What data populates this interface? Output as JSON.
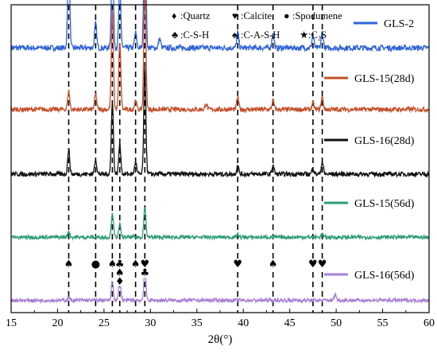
{
  "chart_data": {
    "type": "line",
    "title": "",
    "xlabel": "2θ(°)",
    "ylabel": "",
    "xlim": [
      15,
      60
    ],
    "x_ticks": [
      "15",
      "20",
      "25",
      "30",
      "35",
      "40",
      "45",
      "50",
      "55",
      "60"
    ],
    "y_ticks_shown": false,
    "grid": false,
    "legend_position": "right, beside each trace",
    "peak_key": [
      {
        "symbol": "♦",
        "label": ":Quartz"
      },
      {
        "symbol": "♥",
        "label": ":Calcite"
      },
      {
        "symbol": "●",
        "label": ":Spodumene"
      },
      {
        "symbol": "♣",
        "label": ":C-S-H"
      },
      {
        "symbol": "♠",
        "label": ":C-A-S-H"
      },
      {
        "symbol": "★",
        "label": ":C₂S"
      }
    ],
    "reference_lines": [
      21.2,
      24.1,
      25.9,
      26.7,
      28.4,
      29.4,
      39.4,
      43.2,
      47.5,
      48.5
    ],
    "peak_markers": [
      {
        "x": 21.2,
        "symbol": "♠"
      },
      {
        "x": 24.1,
        "symbol": "●"
      },
      {
        "x": 25.9,
        "symbol": "♠"
      },
      {
        "x": 26.7,
        "symbol": "♣"
      },
      {
        "x": 26.7,
        "symbol": "♠"
      },
      {
        "x": 26.7,
        "symbol": "♦"
      },
      {
        "x": 28.4,
        "symbol": "♠"
      },
      {
        "x": 29.4,
        "symbol": "♥"
      },
      {
        "x": 29.4,
        "symbol": "♣"
      },
      {
        "x": 39.4,
        "symbol": "♥"
      },
      {
        "x": 43.2,
        "symbol": "♠"
      },
      {
        "x": 47.5,
        "symbol": "♥"
      },
      {
        "x": 48.5,
        "symbol": "♥"
      }
    ],
    "series": [
      {
        "name": "GLS-2",
        "color": "#2f63d6",
        "baseline": 0.86,
        "noise": 0.018,
        "peaks": [
          [
            21.2,
            0.3
          ],
          [
            24.1,
            0.08
          ],
          [
            25.9,
            0.3
          ],
          [
            26.7,
            0.2
          ],
          [
            28.4,
            0.05
          ],
          [
            29.4,
            0.45
          ],
          [
            31.0,
            0.03
          ],
          [
            39.4,
            0.05
          ],
          [
            43.2,
            0.05
          ],
          [
            47.5,
            0.04
          ],
          [
            48.5,
            0.05
          ]
        ]
      },
      {
        "name": "GLS-15(28d)",
        "color": "#c4502a",
        "baseline": 0.66,
        "noise": 0.015,
        "peaks": [
          [
            21.2,
            0.06
          ],
          [
            24.1,
            0.05
          ],
          [
            25.9,
            0.32
          ],
          [
            26.7,
            0.22
          ],
          [
            28.4,
            0.03
          ],
          [
            29.4,
            0.4
          ],
          [
            36.0,
            0.02
          ],
          [
            39.4,
            0.04
          ],
          [
            43.2,
            0.03
          ],
          [
            47.5,
            0.02
          ],
          [
            48.5,
            0.04
          ]
        ]
      },
      {
        "name": "GLS-16(28d)",
        "color": "#111111",
        "baseline": 0.45,
        "noise": 0.015,
        "peaks": [
          [
            21.2,
            0.08
          ],
          [
            24.1,
            0.05
          ],
          [
            25.9,
            0.24
          ],
          [
            26.7,
            0.1
          ],
          [
            28.4,
            0.04
          ],
          [
            29.4,
            0.35
          ],
          [
            39.4,
            0.03
          ],
          [
            43.2,
            0.03
          ],
          [
            47.5,
            0.02
          ],
          [
            48.5,
            0.04
          ]
        ]
      },
      {
        "name": "GLS-15(56d)",
        "color": "#2e9d76",
        "baseline": 0.245,
        "noise": 0.012,
        "peaks": [
          [
            21.2,
            0.02
          ],
          [
            25.9,
            0.08
          ],
          [
            26.7,
            0.04
          ],
          [
            29.4,
            0.1
          ],
          [
            39.4,
            0.01
          ],
          [
            48.5,
            0.01
          ]
        ]
      },
      {
        "name": "GLS-16(56d)",
        "color": "#a87ed6",
        "baseline": 0.04,
        "noise": 0.012,
        "peaks": [
          [
            21.2,
            0.01
          ],
          [
            25.9,
            0.06
          ],
          [
            26.7,
            0.07
          ],
          [
            29.4,
            0.1
          ],
          [
            49.9,
            0.02
          ]
        ]
      }
    ]
  }
}
